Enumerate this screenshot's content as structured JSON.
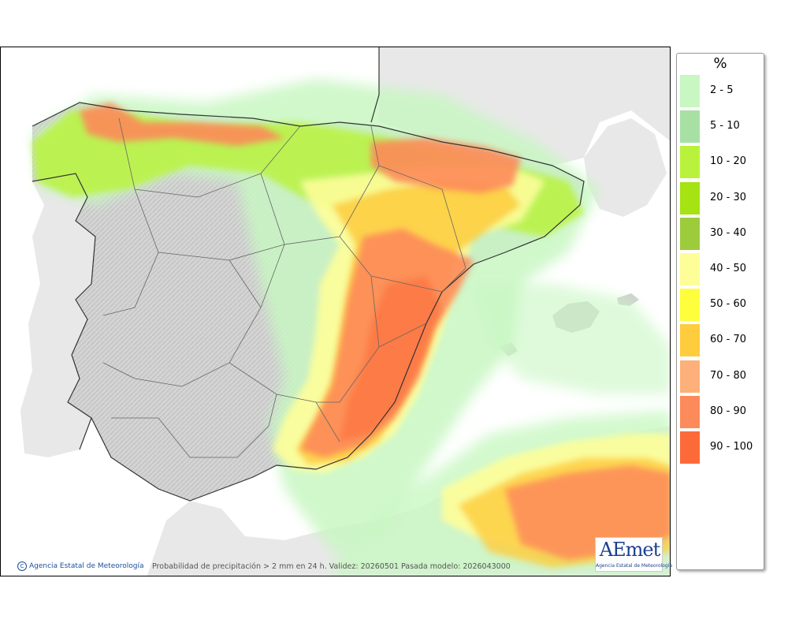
{
  "legend": {
    "title": "%",
    "items": [
      {
        "label": "2 - 5",
        "color": "#c8f7c2"
      },
      {
        "label": "5 - 10",
        "color": "#a8e0a4"
      },
      {
        "label": "10 - 20",
        "color": "#b8f23c"
      },
      {
        "label": "20 - 30",
        "color": "#a5e312"
      },
      {
        "label": "30 - 40",
        "color": "#9ccc3c"
      },
      {
        "label": "40 - 50",
        "color": "#fefe99"
      },
      {
        "label": "50 - 60",
        "color": "#fefe3c"
      },
      {
        "label": "60 - 70",
        "color": "#fecc3c"
      },
      {
        "label": "70 - 80",
        "color": "#fdb07a"
      },
      {
        "label": "80 - 90",
        "color": "#fd8a5a"
      },
      {
        "label": "90 - 100",
        "color": "#fd6a3a"
      }
    ]
  },
  "map": {
    "credit": "Agencia Estatal de Meteorología",
    "caption": "Probabilidad de precipitación > 2 mm en 24 h. Validez: 20260501 Pasada modelo: 2026043000",
    "logo_text": "AEmet",
    "logo_subtext": "Agencia Estatal de Meteorología",
    "colors": {
      "sea": "#ffffff",
      "foreign_land": "#e8e8e8",
      "spain_land": "#cfcfcf",
      "borders": "#333333"
    }
  }
}
